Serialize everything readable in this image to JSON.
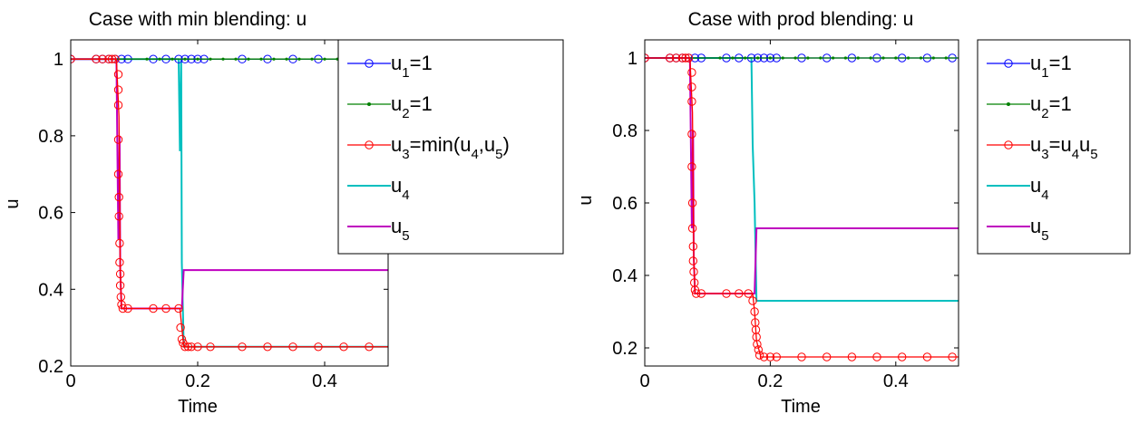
{
  "chart_data": [
    {
      "type": "line",
      "title": "Case with min blending: u",
      "xlabel": "Time",
      "ylabel": "u",
      "xlim": [
        0,
        0.5
      ],
      "ylim": [
        0.2,
        1.05
      ],
      "xticks": [
        "0",
        "0.2",
        "0.4"
      ],
      "yticks": [
        "0.2",
        "0.4",
        "0.6",
        "0.8",
        "1"
      ],
      "legend_position": "outside-right",
      "series": [
        {
          "name": "u_1=1",
          "legend": {
            "base": "u",
            "sub1": "1",
            "tail": "=1"
          },
          "color": "#0000ff",
          "marker": "circle",
          "x": [
            0,
            0.5
          ],
          "y": [
            1,
            1
          ],
          "marker_x": [
            0,
            0.04,
            0.05,
            0.06,
            0.07,
            0.08,
            0.09,
            0.13,
            0.15,
            0.17,
            0.18,
            0.19,
            0.2,
            0.21,
            0.27,
            0.31,
            0.35,
            0.39,
            0.43,
            0.47
          ]
        },
        {
          "name": "u_2=1",
          "legend": {
            "base": "u",
            "sub1": "2",
            "tail": "=1"
          },
          "color": "#008000",
          "marker": "dot",
          "x": [
            0,
            0.5
          ],
          "y": [
            1,
            1
          ]
        },
        {
          "name": "u_3=min(u_4,u_5)",
          "legend": {
            "base": "u",
            "sub1": "3",
            "mid": "=min(u",
            "sub2": "4",
            "mid2": ",u",
            "sub3": "5",
            "tail": ")"
          },
          "color": "#ff0000",
          "marker": "circle",
          "x": [
            0,
            0.072,
            0.076,
            0.078,
            0.08,
            0.09,
            0.172,
            0.175,
            0.178,
            0.5
          ],
          "y": [
            1,
            1,
            0.85,
            0.45,
            0.35,
            0.35,
            0.35,
            0.3,
            0.25,
            0.25
          ],
          "marker_points": [
            [
              0,
              1
            ],
            [
              0.04,
              1
            ],
            [
              0.05,
              1
            ],
            [
              0.06,
              1
            ],
            [
              0.065,
              1
            ],
            [
              0.07,
              1
            ],
            [
              0.075,
              0.96
            ],
            [
              0.075,
              0.92
            ],
            [
              0.075,
              0.88
            ],
            [
              0.075,
              0.79
            ],
            [
              0.075,
              0.7
            ],
            [
              0.076,
              0.64
            ],
            [
              0.076,
              0.59
            ],
            [
              0.077,
              0.52
            ],
            [
              0.077,
              0.47
            ],
            [
              0.078,
              0.44
            ],
            [
              0.078,
              0.41
            ],
            [
              0.079,
              0.38
            ],
            [
              0.08,
              0.36
            ],
            [
              0.082,
              0.35
            ],
            [
              0.09,
              0.35
            ],
            [
              0.13,
              0.35
            ],
            [
              0.15,
              0.35
            ],
            [
              0.17,
              0.35
            ],
            [
              0.173,
              0.3
            ],
            [
              0.175,
              0.27
            ],
            [
              0.177,
              0.26
            ],
            [
              0.18,
              0.25
            ],
            [
              0.185,
              0.25
            ],
            [
              0.19,
              0.25
            ],
            [
              0.2,
              0.25
            ],
            [
              0.22,
              0.25
            ],
            [
              0.27,
              0.25
            ],
            [
              0.31,
              0.25
            ],
            [
              0.35,
              0.25
            ],
            [
              0.39,
              0.25
            ],
            [
              0.43,
              0.25
            ],
            [
              0.47,
              0.25
            ]
          ]
        },
        {
          "name": "u_4",
          "legend": {
            "base": "u",
            "sub1": "4",
            "tail": ""
          },
          "color": "#00bfbf",
          "marker": "none",
          "x": [
            0,
            0.17,
            0.172,
            0.174,
            0.175,
            0.178,
            0.5
          ],
          "y": [
            1,
            1,
            0.76,
            1,
            0.47,
            0.25,
            0.25
          ]
        },
        {
          "name": "u_5",
          "legend": {
            "base": "u",
            "sub1": "5",
            "tail": ""
          },
          "color": "#bf00bf",
          "marker": "none",
          "x": [
            0,
            0.072,
            0.075,
            0.077,
            0.078,
            0.08,
            0.085,
            0.175,
            0.178,
            0.5
          ],
          "y": [
            1,
            1,
            0.53,
            0.8,
            0.45,
            0.35,
            0.35,
            0.35,
            0.45,
            0.45
          ]
        }
      ]
    },
    {
      "type": "line",
      "title": "Case with prod blending: u",
      "xlabel": "Time",
      "ylabel": "u",
      "xlim": [
        0,
        0.5
      ],
      "ylim": [
        0.15,
        1.05
      ],
      "xticks": [
        "0",
        "0.2",
        "0.4"
      ],
      "yticks": [
        "0.2",
        "0.4",
        "0.6",
        "0.8",
        "1"
      ],
      "legend_position": "outside-right",
      "series": [
        {
          "name": "u_1=1",
          "legend": {
            "base": "u",
            "sub1": "1",
            "tail": "=1"
          },
          "color": "#0000ff",
          "marker": "circle",
          "x": [
            0,
            0.5
          ],
          "y": [
            1,
            1
          ],
          "marker_x": [
            0,
            0.04,
            0.05,
            0.06,
            0.07,
            0.08,
            0.09,
            0.13,
            0.15,
            0.17,
            0.18,
            0.19,
            0.2,
            0.21,
            0.25,
            0.29,
            0.33,
            0.37,
            0.41,
            0.45,
            0.49
          ]
        },
        {
          "name": "u_2=1",
          "legend": {
            "base": "u",
            "sub1": "2",
            "tail": "=1"
          },
          "color": "#008000",
          "marker": "dot",
          "x": [
            0,
            0.5
          ],
          "y": [
            1,
            1
          ]
        },
        {
          "name": "u_3=u_4u_5",
          "legend": {
            "base": "u",
            "sub1": "3",
            "mid": "=u",
            "sub2": "4",
            "mid2": "u",
            "sub3": "5",
            "tail": ""
          },
          "color": "#ff0000",
          "marker": "circle",
          "x": [
            0,
            0.072,
            0.076,
            0.078,
            0.08,
            0.09,
            0.172,
            0.175,
            0.178,
            0.185,
            0.5
          ],
          "y": [
            1,
            1,
            0.85,
            0.45,
            0.35,
            0.35,
            0.35,
            0.3,
            0.22,
            0.175,
            0.175
          ],
          "marker_points": [
            [
              0,
              1
            ],
            [
              0.04,
              1
            ],
            [
              0.05,
              1
            ],
            [
              0.06,
              1
            ],
            [
              0.065,
              1
            ],
            [
              0.07,
              1
            ],
            [
              0.075,
              0.96
            ],
            [
              0.075,
              0.92
            ],
            [
              0.075,
              0.88
            ],
            [
              0.075,
              0.79
            ],
            [
              0.075,
              0.7
            ],
            [
              0.076,
              0.6
            ],
            [
              0.076,
              0.53
            ],
            [
              0.077,
              0.48
            ],
            [
              0.077,
              0.44
            ],
            [
              0.078,
              0.41
            ],
            [
              0.079,
              0.38
            ],
            [
              0.08,
              0.36
            ],
            [
              0.082,
              0.35
            ],
            [
              0.09,
              0.35
            ],
            [
              0.13,
              0.35
            ],
            [
              0.15,
              0.35
            ],
            [
              0.165,
              0.35
            ],
            [
              0.172,
              0.33
            ],
            [
              0.175,
              0.3
            ],
            [
              0.176,
              0.27
            ],
            [
              0.177,
              0.25
            ],
            [
              0.178,
              0.23
            ],
            [
              0.179,
              0.21
            ],
            [
              0.181,
              0.195
            ],
            [
              0.183,
              0.18
            ],
            [
              0.19,
              0.175
            ],
            [
              0.2,
              0.175
            ],
            [
              0.21,
              0.175
            ],
            [
              0.25,
              0.175
            ],
            [
              0.29,
              0.175
            ],
            [
              0.33,
              0.175
            ],
            [
              0.37,
              0.175
            ],
            [
              0.41,
              0.175
            ],
            [
              0.45,
              0.175
            ],
            [
              0.49,
              0.175
            ]
          ]
        },
        {
          "name": "u_4",
          "legend": {
            "base": "u",
            "sub1": "4",
            "tail": ""
          },
          "color": "#00bfbf",
          "marker": "none",
          "x": [
            0,
            0.17,
            0.172,
            0.175,
            0.178,
            0.5
          ],
          "y": [
            1,
            1,
            0.76,
            0.6,
            0.33,
            0.33
          ]
        },
        {
          "name": "u_5",
          "legend": {
            "base": "u",
            "sub1": "5",
            "tail": ""
          },
          "color": "#bf00bf",
          "marker": "none",
          "x": [
            0,
            0.072,
            0.075,
            0.077,
            0.078,
            0.08,
            0.085,
            0.175,
            0.178,
            0.5
          ],
          "y": [
            1,
            1,
            0.53,
            0.8,
            0.45,
            0.35,
            0.35,
            0.35,
            0.53,
            0.53
          ]
        }
      ]
    }
  ]
}
